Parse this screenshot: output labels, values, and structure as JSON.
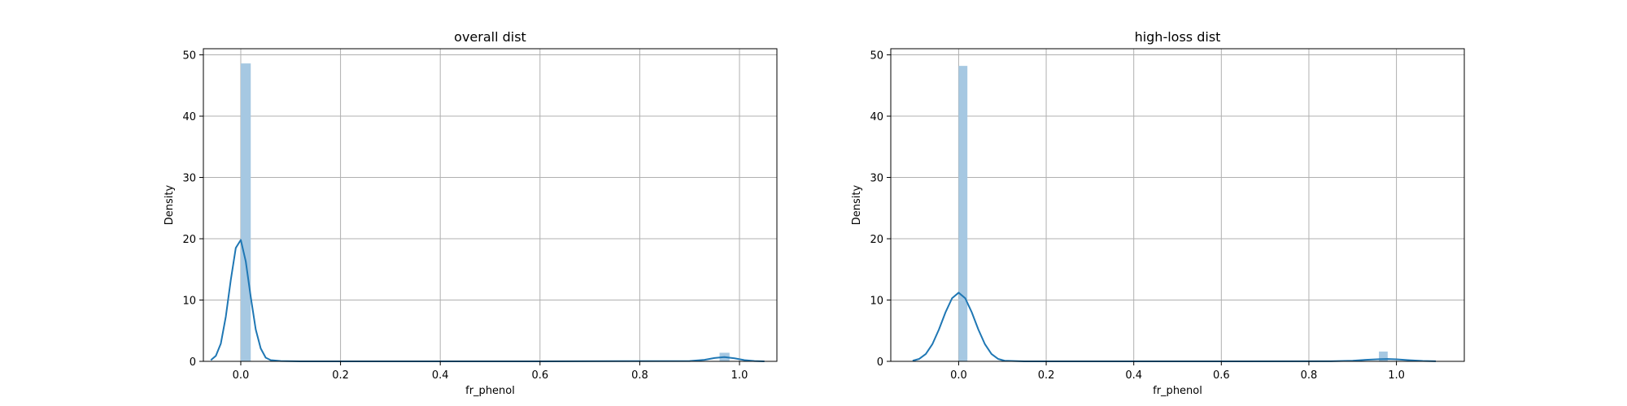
{
  "chart_data": [
    {
      "type": "histogram",
      "title": "overall dist",
      "xlabel": "fr_phenol",
      "ylabel": "Density",
      "xlim": [
        -0.075,
        1.075
      ],
      "ylim": [
        0,
        51
      ],
      "xticks": [
        0.0,
        0.2,
        0.4,
        0.6,
        0.8,
        1.0
      ],
      "xtick_labels": [
        "0.0",
        "0.2",
        "0.4",
        "0.6",
        "0.8",
        "1.0"
      ],
      "yticks": [
        0,
        10,
        20,
        30,
        40,
        50
      ],
      "ytick_labels": [
        "0",
        "10",
        "20",
        "30",
        "40",
        "50"
      ],
      "grid": true,
      "bar_color": "#a6c8e2",
      "line_color": "#1f77b4",
      "bins": [
        {
          "x0": 0.0,
          "x1": 0.02,
          "value": 48.6
        },
        {
          "x0": 0.96,
          "x1": 0.98,
          "value": 1.4
        }
      ],
      "kde": {
        "x": [
          -0.06,
          -0.05,
          -0.04,
          -0.03,
          -0.02,
          -0.01,
          0.0,
          0.01,
          0.02,
          0.03,
          0.04,
          0.05,
          0.06,
          0.08,
          0.12,
          0.3,
          0.6,
          0.9,
          0.93,
          0.95,
          0.97,
          0.99,
          1.01,
          1.03,
          1.05
        ],
        "y": [
          0.2,
          0.9,
          2.9,
          7.3,
          13.3,
          18.5,
          19.8,
          16.3,
          10.5,
          5.2,
          2.1,
          0.6,
          0.2,
          0.05,
          0,
          0,
          0,
          0.05,
          0.25,
          0.55,
          0.7,
          0.5,
          0.2,
          0.05,
          0
        ]
      }
    },
    {
      "type": "histogram",
      "title": "high-loss dist",
      "xlabel": "fr_phenol",
      "ylabel": "Density",
      "xlim": [
        -0.155,
        1.155
      ],
      "ylim": [
        0,
        51
      ],
      "xticks": [
        0.0,
        0.2,
        0.4,
        0.6,
        0.8,
        1.0
      ],
      "xtick_labels": [
        "0.0",
        "0.2",
        "0.4",
        "0.6",
        "0.8",
        "1.0"
      ],
      "yticks": [
        0,
        10,
        20,
        30,
        40,
        50
      ],
      "ytick_labels": [
        "0",
        "10",
        "20",
        "30",
        "40",
        "50"
      ],
      "grid": true,
      "bar_color": "#a6c8e2",
      "line_color": "#1f77b4",
      "bins": [
        {
          "x0": 0.0,
          "x1": 0.02,
          "value": 48.2
        },
        {
          "x0": 0.96,
          "x1": 0.98,
          "value": 1.6
        }
      ],
      "kde": {
        "x": [
          -0.105,
          -0.09,
          -0.075,
          -0.06,
          -0.045,
          -0.03,
          -0.015,
          0.0,
          0.015,
          0.03,
          0.045,
          0.06,
          0.075,
          0.09,
          0.105,
          0.15,
          0.3,
          0.6,
          0.85,
          0.9,
          0.93,
          0.96,
          0.98,
          1.0,
          1.03,
          1.06,
          1.09
        ],
        "y": [
          0.1,
          0.4,
          1.2,
          2.8,
          5.2,
          8.0,
          10.3,
          11.2,
          10.3,
          8.0,
          5.2,
          2.8,
          1.2,
          0.4,
          0.1,
          0,
          0,
          0,
          0.02,
          0.1,
          0.25,
          0.35,
          0.38,
          0.33,
          0.18,
          0.06,
          0.01
        ]
      }
    }
  ]
}
